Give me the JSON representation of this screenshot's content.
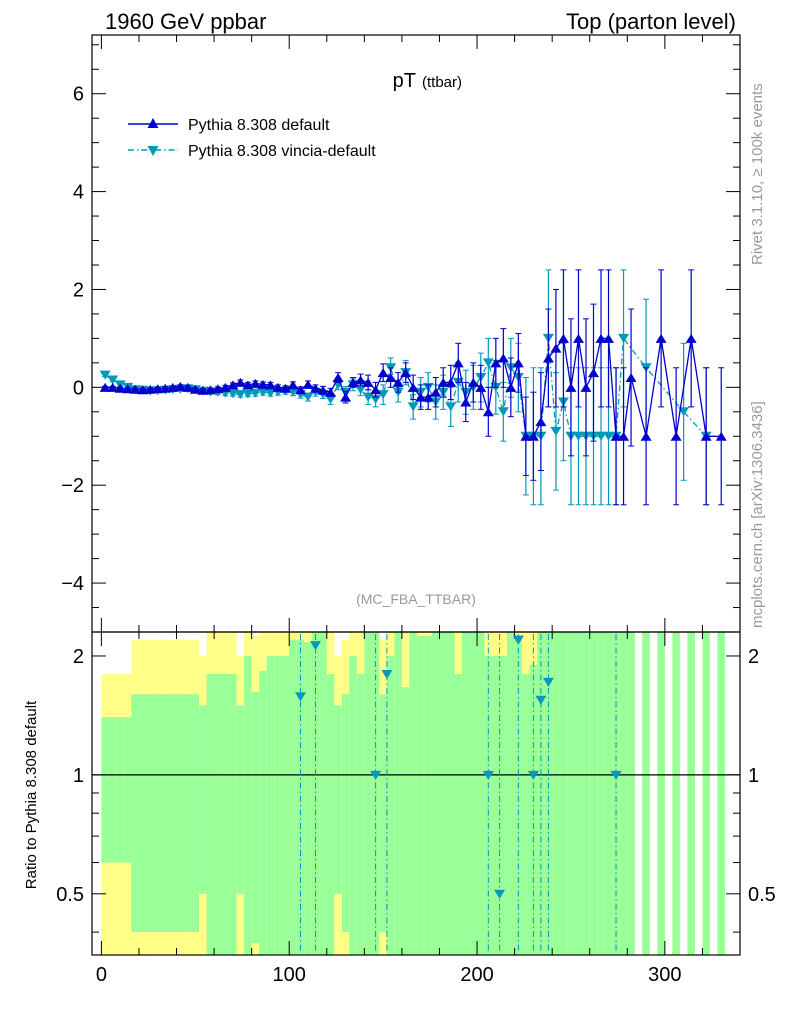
{
  "header": {
    "left_title": "1960 GeV ppbar",
    "right_title": "Top (parton level)"
  },
  "side_labels": {
    "rivet": "Rivet 3.1.10, ≥ 100k events",
    "source": "mcplots.cern.ch [arXiv:1306.3436]"
  },
  "colors": {
    "default": "#0000cc",
    "vincia": "#0099bb",
    "band_green": "#99ff99",
    "band_yellow": "#ffff88",
    "watermark": "#999999"
  },
  "chart_data": [
    {
      "type": "line",
      "title": "pT",
      "title_suffix": "(ttbar)",
      "analysis_tag": "(MC_FBA_TTBAR)",
      "xlim": [
        -5,
        340
      ],
      "ylim": [
        -5,
        7.2
      ],
      "yticks": [
        -4,
        -2,
        0,
        2,
        4,
        6
      ],
      "ytick_labels": [
        "−4",
        "−2",
        "0",
        "2",
        "4",
        "6"
      ],
      "legend": "top-left",
      "series": [
        {
          "name": "Pythia 8.308 default",
          "marker": "triangle-up",
          "line": "solid",
          "points": [
            [
              2,
              0.0,
              0.02
            ],
            [
              6,
              0.0,
              0.02
            ],
            [
              10,
              -0.02,
              0.02
            ],
            [
              14,
              -0.03,
              0.02
            ],
            [
              18,
              -0.04,
              0.03
            ],
            [
              22,
              -0.05,
              0.03
            ],
            [
              26,
              -0.04,
              0.03
            ],
            [
              30,
              -0.03,
              0.03
            ],
            [
              34,
              -0.02,
              0.03
            ],
            [
              38,
              0.0,
              0.03
            ],
            [
              42,
              0.02,
              0.03
            ],
            [
              46,
              0.0,
              0.03
            ],
            [
              50,
              -0.04,
              0.03
            ],
            [
              54,
              -0.06,
              0.03
            ],
            [
              58,
              -0.05,
              0.04
            ],
            [
              62,
              -0.03,
              0.04
            ],
            [
              66,
              0.0,
              0.04
            ],
            [
              70,
              0.05,
              0.04
            ],
            [
              74,
              0.1,
              0.05
            ],
            [
              78,
              0.05,
              0.05
            ],
            [
              82,
              0.08,
              0.05
            ],
            [
              86,
              0.06,
              0.05
            ],
            [
              90,
              0.05,
              0.05
            ],
            [
              94,
              0.0,
              0.05
            ],
            [
              98,
              -0.02,
              0.05
            ],
            [
              102,
              0.05,
              0.06
            ],
            [
              106,
              -0.05,
              0.06
            ],
            [
              110,
              0.06,
              0.07
            ],
            [
              114,
              -0.02,
              0.07
            ],
            [
              118,
              -0.06,
              0.08
            ],
            [
              122,
              -0.1,
              0.08
            ],
            [
              126,
              0.2,
              0.1
            ],
            [
              130,
              -0.2,
              0.12
            ],
            [
              134,
              0.1,
              0.1
            ],
            [
              138,
              0.15,
              0.12
            ],
            [
              142,
              0.1,
              0.15
            ],
            [
              146,
              -0.05,
              0.15
            ],
            [
              150,
              0.3,
              0.18
            ],
            [
              154,
              0.2,
              0.2
            ],
            [
              158,
              0.1,
              0.2
            ],
            [
              162,
              0.3,
              0.2
            ],
            [
              166,
              0.0,
              0.25
            ],
            [
              170,
              -0.2,
              0.25
            ],
            [
              174,
              -0.2,
              0.25
            ],
            [
              178,
              -0.1,
              0.3
            ],
            [
              182,
              0.1,
              0.3
            ],
            [
              186,
              0.1,
              0.35
            ],
            [
              190,
              0.5,
              0.4
            ],
            [
              194,
              -0.3,
              0.4
            ],
            [
              198,
              0.1,
              0.4
            ],
            [
              202,
              0.0,
              0.45
            ],
            [
              206,
              -0.5,
              0.5
            ],
            [
              210,
              0.5,
              0.5
            ],
            [
              214,
              0.6,
              0.6
            ],
            [
              218,
              0.0,
              0.6
            ],
            [
              222,
              0.5,
              0.6
            ],
            [
              226,
              -1.0,
              0.8
            ],
            [
              230,
              -1.0,
              0.9
            ],
            [
              234,
              -0.7,
              1.0
            ],
            [
              238,
              0.6,
              1.0
            ],
            [
              242,
              0.8,
              1.2
            ],
            [
              246,
              1.0,
              1.4
            ],
            [
              250,
              0.0,
              1.4
            ],
            [
              254,
              1.0,
              1.4
            ],
            [
              258,
              0.0,
              1.4
            ],
            [
              262,
              0.3,
              1.4
            ],
            [
              266,
              1.0,
              1.4
            ],
            [
              270,
              1.0,
              1.4
            ],
            [
              274,
              -1.0,
              1.4
            ],
            [
              278,
              -1.0,
              1.4
            ],
            [
              282,
              0.2,
              1.4
            ],
            [
              290,
              -1.0,
              1.4
            ],
            [
              298,
              1.0,
              1.4
            ],
            [
              306,
              -1.0,
              1.4
            ],
            [
              314,
              1.0,
              1.4
            ],
            [
              322,
              -1.0,
              1.4
            ],
            [
              330,
              -1.0,
              1.4
            ]
          ]
        },
        {
          "name": "Pythia 8.308 vincia-default",
          "marker": "triangle-down",
          "line": "dashdot",
          "points": [
            [
              2,
              0.25,
              0.03
            ],
            [
              6,
              0.15,
              0.03
            ],
            [
              10,
              0.05,
              0.03
            ],
            [
              14,
              0.0,
              0.03
            ],
            [
              18,
              -0.05,
              0.03
            ],
            [
              22,
              -0.06,
              0.03
            ],
            [
              26,
              -0.08,
              0.03
            ],
            [
              30,
              -0.07,
              0.03
            ],
            [
              34,
              -0.06,
              0.03
            ],
            [
              38,
              -0.05,
              0.04
            ],
            [
              42,
              -0.04,
              0.04
            ],
            [
              46,
              -0.03,
              0.04
            ],
            [
              50,
              -0.05,
              0.04
            ],
            [
              54,
              -0.08,
              0.04
            ],
            [
              58,
              -0.1,
              0.04
            ],
            [
              62,
              -0.1,
              0.05
            ],
            [
              66,
              -0.12,
              0.05
            ],
            [
              70,
              -0.13,
              0.05
            ],
            [
              74,
              -0.15,
              0.05
            ],
            [
              78,
              -0.14,
              0.05
            ],
            [
              82,
              -0.12,
              0.06
            ],
            [
              86,
              -0.1,
              0.06
            ],
            [
              90,
              -0.12,
              0.06
            ],
            [
              94,
              -0.1,
              0.06
            ],
            [
              98,
              -0.08,
              0.06
            ],
            [
              102,
              -0.1,
              0.07
            ],
            [
              106,
              -0.15,
              0.07
            ],
            [
              110,
              -0.2,
              0.08
            ],
            [
              114,
              -0.1,
              0.08
            ],
            [
              118,
              -0.15,
              0.08
            ],
            [
              122,
              -0.25,
              0.1
            ],
            [
              126,
              0.05,
              0.1
            ],
            [
              130,
              -0.1,
              0.12
            ],
            [
              134,
              0.05,
              0.12
            ],
            [
              138,
              -0.05,
              0.12
            ],
            [
              142,
              -0.2,
              0.15
            ],
            [
              146,
              -0.25,
              0.15
            ],
            [
              150,
              -0.15,
              0.2
            ],
            [
              154,
              0.4,
              0.2
            ],
            [
              158,
              -0.1,
              0.2
            ],
            [
              162,
              0.3,
              0.25
            ],
            [
              166,
              -0.4,
              0.25
            ],
            [
              170,
              -0.1,
              0.3
            ],
            [
              174,
              0.0,
              0.3
            ],
            [
              178,
              -0.3,
              0.35
            ],
            [
              182,
              -0.1,
              0.35
            ],
            [
              186,
              -0.4,
              0.4
            ],
            [
              190,
              0.1,
              0.4
            ],
            [
              194,
              -0.1,
              0.45
            ],
            [
              198,
              0.0,
              0.45
            ],
            [
              202,
              0.2,
              0.5
            ],
            [
              206,
              0.5,
              0.5
            ],
            [
              210,
              0.0,
              0.55
            ],
            [
              214,
              -0.5,
              0.6
            ],
            [
              218,
              0.4,
              0.6
            ],
            [
              222,
              0.2,
              0.7
            ],
            [
              226,
              -1.0,
              1.2
            ],
            [
              230,
              -1.0,
              1.4
            ],
            [
              234,
              -1.0,
              1.4
            ],
            [
              238,
              1.0,
              1.4
            ],
            [
              242,
              -0.9,
              1.2
            ],
            [
              246,
              -0.3,
              1.2
            ],
            [
              250,
              -1.0,
              1.4
            ],
            [
              254,
              -1.0,
              1.4
            ],
            [
              258,
              -1.0,
              1.4
            ],
            [
              262,
              -1.0,
              1.4
            ],
            [
              266,
              -1.0,
              1.4
            ],
            [
              270,
              -1.0,
              1.4
            ],
            [
              274,
              -1.0,
              1.4
            ],
            [
              278,
              1.0,
              1.4
            ],
            [
              290,
              0.4,
              1.4
            ],
            [
              310,
              -0.5,
              1.4
            ],
            [
              322,
              -1.0,
              1.4
            ]
          ]
        }
      ]
    },
    {
      "type": "area",
      "ylabel": "Ratio to Pythia 8.308 default",
      "xlim": [
        -5,
        340
      ],
      "ylim": [
        0.35,
        2.3
      ],
      "yticks": [
        0.5,
        1,
        2
      ],
      "ytick_labels": [
        "0.5",
        "1",
        "2"
      ],
      "xticks": [
        0,
        100,
        200,
        300
      ],
      "xtick_labels": [
        "0",
        "100",
        "200",
        "300"
      ],
      "reference_line": 1,
      "bands": {
        "green": "1σ statistical uncertainty of the default sample",
        "yellow": "2σ statistical uncertainty of the default sample"
      },
      "vincia_ratio": [
        [
          146,
          1.0
        ],
        [
          152,
          1.8
        ],
        [
          206,
          1.0
        ],
        [
          212,
          0.5
        ],
        [
          222,
          2.2
        ],
        [
          230,
          1.0
        ],
        [
          234,
          1.55
        ],
        [
          238,
          1.72
        ],
        [
          274,
          1.0
        ],
        [
          106,
          1.58
        ],
        [
          114,
          2.13
        ]
      ]
    }
  ]
}
